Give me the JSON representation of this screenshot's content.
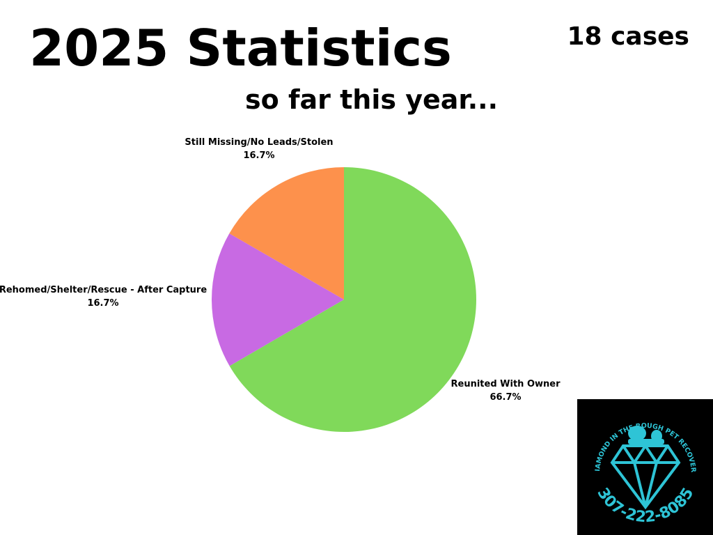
{
  "chart_data": {
    "type": "pie",
    "title": "2025 Statistics",
    "subtitle": "so far this year...",
    "annotation": "18 cases",
    "categories": [
      "Reunited With Owner",
      "Rehomed/Shelter/Rescue - After Capture",
      "Still Missing/No Leads/Stolen"
    ],
    "values": [
      66.7,
      16.7,
      16.7
    ],
    "value_labels": [
      "66.7%",
      "16.7%",
      "16.7%"
    ],
    "colors": [
      "#80d95a",
      "#c86ae3",
      "#fd914c"
    ]
  },
  "logo": {
    "name": "DIAMOND IN THE ROUGH PET RECOVERY",
    "phone": "307-222-8085"
  }
}
